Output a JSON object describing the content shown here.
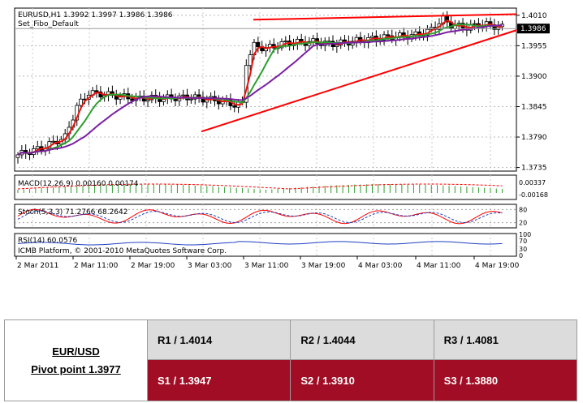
{
  "chart": {
    "symbol_line": "EURUSD,H1  1.3992 1.3997 1.3986 1.3986",
    "template_line": "Set_Fibo_Default",
    "current_price": "1.3986",
    "price_ticks": [
      "1.4010",
      "1.3955",
      "1.3900",
      "1.3845",
      "1.3790",
      "1.3735"
    ],
    "time_labels": [
      "2 Mar 2011",
      "2 Mar 11:00",
      "2 Mar 19:00",
      "3 Mar 03:00",
      "3 Mar 11:00",
      "3 Mar 19:00",
      "4 Mar 03:00",
      "4 Mar 11:00",
      "4 Mar 19:00"
    ],
    "macd": {
      "label": "MACD(12,26,9) 0.00160 0.00174",
      "ticks": [
        "0.00337",
        "-0.00168"
      ]
    },
    "stoch": {
      "label": "Stoch(5,3,3) 71.2766 68.2642",
      "ticks": [
        "80",
        "20"
      ]
    },
    "rsi": {
      "label": "RSI(14) 60.0576",
      "ticks": [
        "100",
        "70",
        "30",
        "0"
      ]
    },
    "copyright": "ICMB Platform, © 2001-2010 MetaQuotes Software Corp.",
    "colors": {
      "bull_candle": "#ffffff",
      "bear_candle": "#000000",
      "ma_fast": "#e8140c",
      "ma_mid": "#2e9e2e",
      "ma_slow": "#7b1fa2",
      "trendline": "#ff0000",
      "macd_hist": "#2e9e2e",
      "macd_signal": "#ff0000",
      "stoch_main": "#ff0000",
      "stoch_signal": "#1f3fbf",
      "rsi_line": "#1f3fbf"
    }
  },
  "chart_data": {
    "type": "candlestick",
    "title": "EURUSD,H1",
    "ylim": [
      1.373,
      1.402
    ],
    "x": [
      "2 Mar 2011",
      "2 Mar 11:00",
      "2 Mar 19:00",
      "3 Mar 03:00",
      "3 Mar 11:00",
      "3 Mar 19:00",
      "4 Mar 03:00",
      "4 Mar 11:00",
      "4 Mar 19:00"
    ],
    "last_candle": {
      "open": 1.3992,
      "high": 1.3997,
      "low": 1.3986,
      "close": 1.3986
    },
    "macd": {
      "main": 0.0016,
      "signal": 0.00174
    },
    "stoch": {
      "main": 71.2766,
      "signal": 68.2642
    },
    "rsi": 60.0576
  },
  "pivot": {
    "pair": "EUR/USD",
    "pivot_point": "Pivot point 1.3977",
    "resistance": [
      "R1 / 1.4014",
      "R2 / 1.4044",
      "R3 / 1.4081"
    ],
    "support": [
      "S1 / 1.3947",
      "S2 / 1.3910",
      "S3 / 1.3880"
    ],
    "colors": {
      "resistance_bg": "#dcdcdc",
      "support_bg": "#a00d24"
    }
  }
}
